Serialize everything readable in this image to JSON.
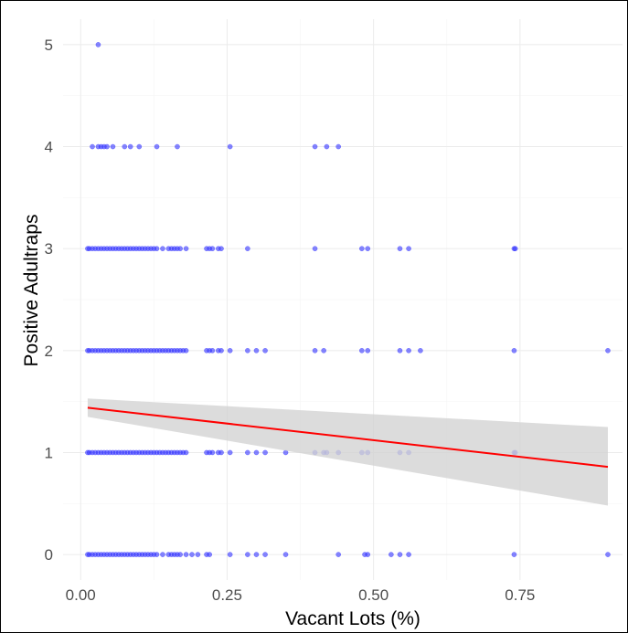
{
  "chart_data": {
    "type": "scatter",
    "title": "",
    "xlabel": "Vacant Lots (%)",
    "ylabel": "Positive Adultraps",
    "xlim": [
      -0.03,
      0.925
    ],
    "ylim": [
      -0.25,
      5.25
    ],
    "x_ticks": [
      0.0,
      0.25,
      0.5,
      0.75
    ],
    "x_tick_labels": [
      "0.00",
      "0.25",
      "0.50",
      "0.75"
    ],
    "y_ticks": [
      0,
      1,
      2,
      3,
      4,
      5
    ],
    "y_tick_labels": [
      "0",
      "1",
      "2",
      "3",
      "4",
      "5"
    ],
    "grid": true,
    "point_color": "#3333ff",
    "line_color": "#ff0000",
    "band_color": "#d3d3d3",
    "points": [
      {
        "y": 5,
        "x": [
          0.03
        ]
      },
      {
        "y": 4,
        "x": [
          0.02,
          0.03,
          0.035,
          0.04,
          0.045,
          0.055,
          0.075,
          0.085,
          0.1,
          0.13,
          0.165,
          0.255,
          0.4,
          0.42,
          0.44
        ]
      },
      {
        "y": 3,
        "x": [
          0.012,
          0.015,
          0.02,
          0.025,
          0.03,
          0.035,
          0.04,
          0.045,
          0.05,
          0.055,
          0.06,
          0.065,
          0.07,
          0.075,
          0.08,
          0.085,
          0.09,
          0.095,
          0.1,
          0.105,
          0.11,
          0.115,
          0.12,
          0.125,
          0.13,
          0.14,
          0.15,
          0.155,
          0.16,
          0.165,
          0.17,
          0.18,
          0.215,
          0.22,
          0.225,
          0.235,
          0.24,
          0.285,
          0.4,
          0.48,
          0.49,
          0.545,
          0.56,
          0.74,
          0.742
        ]
      },
      {
        "y": 2,
        "x": [
          0.012,
          0.015,
          0.02,
          0.025,
          0.03,
          0.035,
          0.04,
          0.045,
          0.05,
          0.055,
          0.06,
          0.065,
          0.07,
          0.075,
          0.08,
          0.085,
          0.09,
          0.095,
          0.1,
          0.105,
          0.11,
          0.115,
          0.12,
          0.125,
          0.13,
          0.135,
          0.14,
          0.145,
          0.15,
          0.155,
          0.16,
          0.165,
          0.17,
          0.175,
          0.18,
          0.215,
          0.22,
          0.225,
          0.235,
          0.24,
          0.255,
          0.285,
          0.3,
          0.315,
          0.4,
          0.415,
          0.48,
          0.49,
          0.545,
          0.56,
          0.58,
          0.74,
          0.9
        ]
      },
      {
        "y": 1,
        "x": [
          0.012,
          0.015,
          0.02,
          0.025,
          0.03,
          0.035,
          0.04,
          0.045,
          0.05,
          0.055,
          0.06,
          0.065,
          0.07,
          0.075,
          0.08,
          0.085,
          0.09,
          0.095,
          0.1,
          0.105,
          0.11,
          0.115,
          0.12,
          0.125,
          0.13,
          0.135,
          0.14,
          0.145,
          0.15,
          0.155,
          0.16,
          0.165,
          0.17,
          0.175,
          0.18,
          0.215,
          0.22,
          0.225,
          0.235,
          0.24,
          0.255,
          0.285,
          0.3,
          0.315,
          0.35,
          0.4,
          0.415,
          0.42,
          0.44,
          0.48,
          0.49,
          0.545,
          0.56,
          0.74,
          0.742
        ]
      },
      {
        "y": 0,
        "x": [
          0.012,
          0.015,
          0.02,
          0.025,
          0.03,
          0.035,
          0.04,
          0.045,
          0.05,
          0.055,
          0.06,
          0.065,
          0.07,
          0.075,
          0.08,
          0.085,
          0.09,
          0.095,
          0.1,
          0.105,
          0.11,
          0.115,
          0.12,
          0.125,
          0.13,
          0.14,
          0.15,
          0.155,
          0.16,
          0.165,
          0.17,
          0.18,
          0.19,
          0.2,
          0.215,
          0.22,
          0.255,
          0.285,
          0.3,
          0.315,
          0.35,
          0.44,
          0.485,
          0.49,
          0.53,
          0.545,
          0.56,
          0.74,
          0.9
        ]
      }
    ],
    "fit_line": {
      "x": [
        0.012,
        0.9
      ],
      "y": [
        1.44,
        0.86
      ]
    },
    "conf_band": {
      "x": [
        0.012,
        0.9
      ],
      "lower": [
        1.35,
        0.48
      ],
      "upper": [
        1.53,
        1.25
      ]
    }
  }
}
